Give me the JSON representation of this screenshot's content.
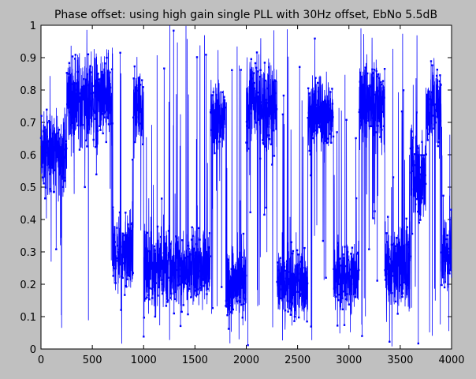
{
  "window": {
    "background": "#c0c0c0"
  },
  "chart_data": {
    "type": "line",
    "title": "Phase offset: using high gain single PLL with 30Hz offset, EbNo 5.5dB",
    "xlabel": "",
    "ylabel": "",
    "xlim": [
      0,
      4000
    ],
    "ylim": [
      0,
      1
    ],
    "xticks": [
      0,
      500,
      1000,
      1500,
      2000,
      2500,
      3000,
      3500,
      4000
    ],
    "yticks": [
      0,
      0.1,
      0.2,
      0.3,
      0.4,
      0.5,
      0.6,
      0.7,
      0.8,
      0.9,
      1
    ],
    "grid": false,
    "marker": "point",
    "colors": {
      "line": "#0000ff",
      "axes": "#000000",
      "plot_bg": "#ffffff",
      "text": "#000000"
    },
    "n_points": 4000,
    "series": [
      {
        "values_summary": "noisy phase offset sample trace, wrapping between 0 and 1 cycle",
        "segments": [
          {
            "x_start": 0,
            "x_end": 250,
            "y_low": 0.45,
            "y_high": 0.75
          },
          {
            "x_start": 250,
            "x_end": 700,
            "y_low": 0.6,
            "y_high": 0.95
          },
          {
            "x_start": 700,
            "x_end": 900,
            "y_low": 0.15,
            "y_high": 0.45
          },
          {
            "x_start": 900,
            "x_end": 1000,
            "y_low": 0.6,
            "y_high": 0.9
          },
          {
            "x_start": 1000,
            "x_end": 1300,
            "y_low": 0.1,
            "y_high": 0.4
          },
          {
            "x_start": 1300,
            "x_end": 1650,
            "y_low": 0.12,
            "y_high": 0.38
          },
          {
            "x_start": 1650,
            "x_end": 1800,
            "y_low": 0.6,
            "y_high": 0.85
          },
          {
            "x_start": 1800,
            "x_end": 2000,
            "y_low": 0.05,
            "y_high": 0.35
          },
          {
            "x_start": 2000,
            "x_end": 2300,
            "y_low": 0.6,
            "y_high": 0.92
          },
          {
            "x_start": 2300,
            "x_end": 2600,
            "y_low": 0.05,
            "y_high": 0.35
          },
          {
            "x_start": 2600,
            "x_end": 2850,
            "y_low": 0.6,
            "y_high": 0.85
          },
          {
            "x_start": 2850,
            "x_end": 3100,
            "y_low": 0.1,
            "y_high": 0.35
          },
          {
            "x_start": 3100,
            "x_end": 3350,
            "y_low": 0.62,
            "y_high": 0.9
          },
          {
            "x_start": 3350,
            "x_end": 3600,
            "y_low": 0.1,
            "y_high": 0.4
          },
          {
            "x_start": 3600,
            "x_end": 3750,
            "y_low": 0.35,
            "y_high": 0.7
          },
          {
            "x_start": 3750,
            "x_end": 3900,
            "y_low": 0.6,
            "y_high": 0.9
          },
          {
            "x_start": 3900,
            "x_end": 4000,
            "y_low": 0.15,
            "y_high": 0.45
          }
        ]
      }
    ]
  }
}
